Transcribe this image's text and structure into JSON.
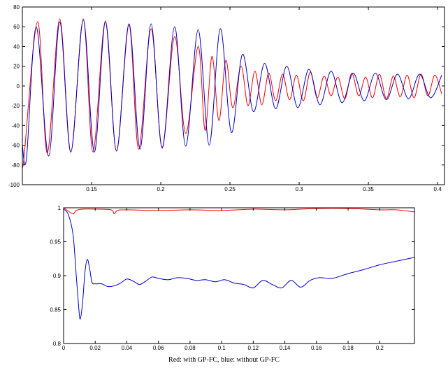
{
  "caption": "Red: with GP-FC, blue: without GP-FC",
  "colors": {
    "red": "#ff0000",
    "blue": "#0000cc",
    "axis": "#000000"
  },
  "chart_data": [
    {
      "type": "line",
      "title": "",
      "xlabel": "",
      "ylabel": "",
      "xlim": [
        0.1,
        0.405
      ],
      "ylim": [
        -100,
        80
      ],
      "xticks": [
        0.15,
        0.2,
        0.25,
        0.3,
        0.35,
        0.4
      ],
      "xtick_labels": [
        "0.15",
        "0.2",
        "0.25",
        "0.3",
        "0.35",
        "0.4"
      ],
      "yticks": [
        -100,
        -80,
        -60,
        -40,
        -20,
        0,
        20,
        40,
        60,
        80
      ],
      "ytick_labels": [
        "-100",
        "-80",
        "-60",
        "-40",
        "-20",
        "0",
        "20",
        "40",
        "60",
        "80"
      ],
      "grid": false,
      "series": [
        {
          "color": "red",
          "x": [
            0.1,
            0.101,
            0.111,
            0.118,
            0.127,
            0.135,
            0.144,
            0.151,
            0.16,
            0.168,
            0.177,
            0.184,
            0.193,
            0.201,
            0.21,
            0.218,
            0.227,
            0.232,
            0.237,
            0.242,
            0.247,
            0.252,
            0.258,
            0.263,
            0.268,
            0.273,
            0.278,
            0.283,
            0.288,
            0.293,
            0.298,
            0.303,
            0.308,
            0.313,
            0.318,
            0.323,
            0.328,
            0.333,
            0.338,
            0.343,
            0.348,
            0.353,
            0.358,
            0.363,
            0.368,
            0.373,
            0.378,
            0.383,
            0.388,
            0.393,
            0.398,
            0.403
          ],
          "y": [
            -65,
            -75,
            65,
            -68,
            68,
            -67,
            68,
            -67,
            66,
            -66,
            62,
            -64,
            58,
            -62,
            50,
            -48,
            40,
            -45,
            30,
            -35,
            26,
            -22,
            20,
            -20,
            15,
            -19,
            13,
            -15,
            12,
            -14,
            11,
            -15,
            14,
            -12,
            10,
            -10,
            9,
            -13,
            13,
            -10,
            9,
            -12,
            12,
            -13,
            10,
            -11,
            11,
            -12,
            12,
            -10,
            11,
            -8
          ]
        },
        {
          "color": "blue",
          "x": [
            0.1,
            0.103,
            0.11,
            0.119,
            0.127,
            0.135,
            0.144,
            0.152,
            0.16,
            0.168,
            0.177,
            0.185,
            0.193,
            0.201,
            0.21,
            0.218,
            0.227,
            0.235,
            0.243,
            0.251,
            0.259,
            0.267,
            0.275,
            0.283,
            0.291,
            0.299,
            0.307,
            0.315,
            0.323,
            0.331,
            0.339,
            0.347,
            0.355,
            0.363,
            0.371,
            0.379,
            0.387,
            0.395,
            0.403
          ],
          "y": [
            -60,
            -73,
            60,
            -71,
            65,
            -67,
            67,
            -67,
            65,
            -66,
            63,
            -64,
            63,
            -63,
            60,
            -61,
            57,
            -60,
            58,
            -47,
            32,
            -26,
            23,
            -23,
            20,
            -22,
            17,
            -19,
            15,
            -17,
            13,
            -15,
            13,
            -14,
            12,
            -13,
            12,
            -12,
            11
          ]
        }
      ]
    },
    {
      "type": "line",
      "title": "",
      "xlabel": "",
      "ylabel": "",
      "xlim": [
        0,
        0.222
      ],
      "ylim": [
        0.8,
        1.0
      ],
      "xticks": [
        0,
        0.02,
        0.04,
        0.06,
        0.08,
        0.1,
        0.12,
        0.14,
        0.16,
        0.18,
        0.2
      ],
      "xtick_labels": [
        "0",
        "0.02",
        "0.04",
        "0.06",
        "0.08",
        "0.1",
        "0.12",
        "0.14",
        "0.16",
        "0.18",
        "0.2"
      ],
      "yticks": [
        0.8,
        0.85,
        0.9,
        0.95,
        1.0
      ],
      "ytick_labels": [
        "0.8",
        "0.85",
        "0.9",
        "0.95",
        "1"
      ],
      "grid": false,
      "series": [
        {
          "color": "red",
          "x": [
            0,
            0.003,
            0.006,
            0.008,
            0.012,
            0.02,
            0.03,
            0.032,
            0.034,
            0.04,
            0.06,
            0.08,
            0.1,
            0.12,
            0.14,
            0.16,
            0.18,
            0.2,
            0.21,
            0.222
          ],
          "y": [
            1.0,
            0.995,
            0.991,
            0.996,
            0.998,
            0.998,
            0.997,
            0.991,
            0.996,
            0.997,
            0.996,
            0.997,
            0.996,
            0.998,
            0.997,
            0.999,
            0.999,
            0.997,
            0.997,
            0.994
          ]
        },
        {
          "color": "blue",
          "x": [
            0,
            0.003,
            0.006,
            0.008,
            0.0095,
            0.0105,
            0.012,
            0.0135,
            0.015,
            0.0165,
            0.018,
            0.02,
            0.024,
            0.028,
            0.032,
            0.036,
            0.04,
            0.044,
            0.048,
            0.052,
            0.056,
            0.06,
            0.066,
            0.072,
            0.078,
            0.084,
            0.09,
            0.096,
            0.102,
            0.108,
            0.114,
            0.12,
            0.126,
            0.132,
            0.138,
            0.144,
            0.15,
            0.156,
            0.162,
            0.17,
            0.18,
            0.19,
            0.2,
            0.21,
            0.222
          ],
          "y": [
            0.998,
            0.99,
            0.96,
            0.9,
            0.855,
            0.836,
            0.86,
            0.905,
            0.924,
            0.91,
            0.89,
            0.888,
            0.888,
            0.884,
            0.885,
            0.889,
            0.895,
            0.892,
            0.887,
            0.892,
            0.898,
            0.896,
            0.894,
            0.897,
            0.896,
            0.893,
            0.894,
            0.891,
            0.894,
            0.889,
            0.887,
            0.882,
            0.893,
            0.887,
            0.882,
            0.893,
            0.883,
            0.893,
            0.897,
            0.896,
            0.903,
            0.909,
            0.916,
            0.921,
            0.927
          ]
        }
      ]
    }
  ]
}
